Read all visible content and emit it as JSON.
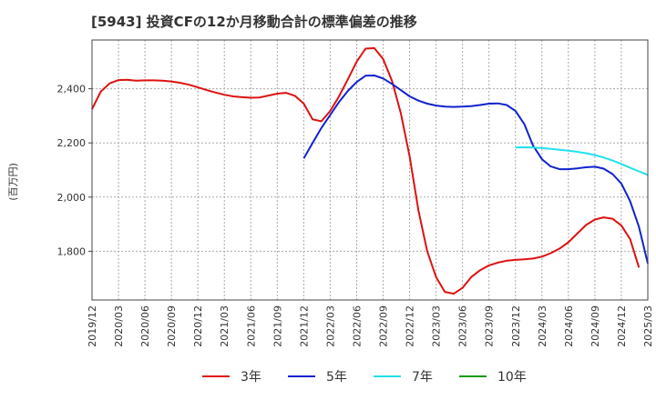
{
  "chart_data": {
    "type": "line",
    "title": "[5943]  投資CFの12か月移動合計の標準偏差の推移",
    "ylabel": "(百万円)",
    "xlabel": "",
    "ylim": [
      1620,
      2580
    ],
    "xlim": [
      "2019-12",
      "2025-03"
    ],
    "grid": "vertical-dashed",
    "legend_position": "bottom",
    "x_ticks": [
      "2019/12",
      "2020/03",
      "2020/06",
      "2020/09",
      "2020/12",
      "2021/03",
      "2021/06",
      "2021/09",
      "2021/12",
      "2022/03",
      "2022/06",
      "2022/09",
      "2022/12",
      "2023/03",
      "2023/06",
      "2023/09",
      "2023/12",
      "2024/03",
      "2024/06",
      "2024/09",
      "2024/12",
      "2025/03"
    ],
    "y_ticks": [
      1800,
      2000,
      2200,
      2400
    ],
    "y_tick_labels": [
      "1,800",
      "2,000",
      "2,200",
      "2,400"
    ],
    "series": [
      {
        "name": "3年",
        "color": "#dd1111",
        "points": [
          [
            "2019-12",
            2325
          ],
          [
            "2020-01",
            2390
          ],
          [
            "2020-02",
            2420
          ],
          [
            "2020-03",
            2432
          ],
          [
            "2020-04",
            2433
          ],
          [
            "2020-05",
            2430
          ],
          [
            "2020-06",
            2431
          ],
          [
            "2020-07",
            2431
          ],
          [
            "2020-08",
            2430
          ],
          [
            "2020-09",
            2427
          ],
          [
            "2020-10",
            2422
          ],
          [
            "2020-11",
            2415
          ],
          [
            "2020-12",
            2405
          ],
          [
            "2021-01",
            2395
          ],
          [
            "2021-02",
            2386
          ],
          [
            "2021-03",
            2378
          ],
          [
            "2021-04",
            2372
          ],
          [
            "2021-05",
            2369
          ],
          [
            "2021-06",
            2367
          ],
          [
            "2021-07",
            2368
          ],
          [
            "2021-08",
            2375
          ],
          [
            "2021-09",
            2382
          ],
          [
            "2021-10",
            2385
          ],
          [
            "2021-11",
            2374
          ],
          [
            "2021-12",
            2345
          ],
          [
            "2022-01",
            2287
          ],
          [
            "2022-02",
            2280
          ],
          [
            "2022-03",
            2318
          ],
          [
            "2022-04",
            2372
          ],
          [
            "2022-05",
            2435
          ],
          [
            "2022-06",
            2500
          ],
          [
            "2022-07",
            2548
          ],
          [
            "2022-08",
            2550
          ],
          [
            "2022-09",
            2510
          ],
          [
            "2022-10",
            2430
          ],
          [
            "2022-11",
            2310
          ],
          [
            "2022-12",
            2150
          ],
          [
            "2023-01",
            1950
          ],
          [
            "2023-02",
            1800
          ],
          [
            "2023-03",
            1705
          ],
          [
            "2023-04",
            1650
          ],
          [
            "2023-05",
            1643
          ],
          [
            "2023-06",
            1665
          ],
          [
            "2023-07",
            1705
          ],
          [
            "2023-08",
            1730
          ],
          [
            "2023-09",
            1748
          ],
          [
            "2023-10",
            1758
          ],
          [
            "2023-11",
            1765
          ],
          [
            "2023-12",
            1768
          ],
          [
            "2024-01",
            1770
          ],
          [
            "2024-02",
            1773
          ],
          [
            "2024-03",
            1780
          ],
          [
            "2024-04",
            1793
          ],
          [
            "2024-05",
            1810
          ],
          [
            "2024-06",
            1833
          ],
          [
            "2024-07",
            1865
          ],
          [
            "2024-08",
            1897
          ],
          [
            "2024-09",
            1917
          ],
          [
            "2024-10",
            1925
          ],
          [
            "2024-11",
            1920
          ],
          [
            "2024-12",
            1895
          ],
          [
            "2025-01",
            1845
          ],
          [
            "2025-02",
            1740
          ]
        ]
      },
      {
        "name": "5年",
        "color": "#1122cc",
        "points": [
          [
            "2021-12",
            2143
          ],
          [
            "2022-01",
            2200
          ],
          [
            "2022-02",
            2255
          ],
          [
            "2022-03",
            2303
          ],
          [
            "2022-04",
            2351
          ],
          [
            "2022-05",
            2392
          ],
          [
            "2022-06",
            2425
          ],
          [
            "2022-07",
            2448
          ],
          [
            "2022-08",
            2449
          ],
          [
            "2022-09",
            2438
          ],
          [
            "2022-10",
            2418
          ],
          [
            "2022-11",
            2395
          ],
          [
            "2022-12",
            2372
          ],
          [
            "2023-01",
            2356
          ],
          [
            "2023-02",
            2345
          ],
          [
            "2023-03",
            2338
          ],
          [
            "2023-04",
            2334
          ],
          [
            "2023-05",
            2333
          ],
          [
            "2023-06",
            2334
          ],
          [
            "2023-07",
            2336
          ],
          [
            "2023-08",
            2340
          ],
          [
            "2023-09",
            2345
          ],
          [
            "2023-10",
            2346
          ],
          [
            "2023-11",
            2340
          ],
          [
            "2023-12",
            2318
          ],
          [
            "2024-01",
            2270
          ],
          [
            "2024-02",
            2190
          ],
          [
            "2024-03",
            2140
          ],
          [
            "2024-04",
            2113
          ],
          [
            "2024-05",
            2103
          ],
          [
            "2024-06",
            2103
          ],
          [
            "2024-07",
            2106
          ],
          [
            "2024-08",
            2110
          ],
          [
            "2024-09",
            2112
          ],
          [
            "2024-10",
            2105
          ],
          [
            "2024-11",
            2085
          ],
          [
            "2024-12",
            2050
          ],
          [
            "2025-01",
            1985
          ],
          [
            "2025-02",
            1890
          ],
          [
            "2025-03",
            1755
          ]
        ]
      },
      {
        "name": "7年",
        "color": "#22e0ee",
        "points": [
          [
            "2023-12",
            2183
          ],
          [
            "2024-01",
            2184
          ],
          [
            "2024-02",
            2183
          ],
          [
            "2024-03",
            2181
          ],
          [
            "2024-04",
            2178
          ],
          [
            "2024-05",
            2175
          ],
          [
            "2024-06",
            2171
          ],
          [
            "2024-07",
            2167
          ],
          [
            "2024-08",
            2162
          ],
          [
            "2024-09",
            2155
          ],
          [
            "2024-10",
            2146
          ],
          [
            "2024-11",
            2135
          ],
          [
            "2024-12",
            2122
          ],
          [
            "2025-01",
            2108
          ],
          [
            "2025-02",
            2095
          ],
          [
            "2025-03",
            2082
          ]
        ]
      },
      {
        "name": "10年",
        "color": "#119911",
        "points": []
      }
    ]
  }
}
